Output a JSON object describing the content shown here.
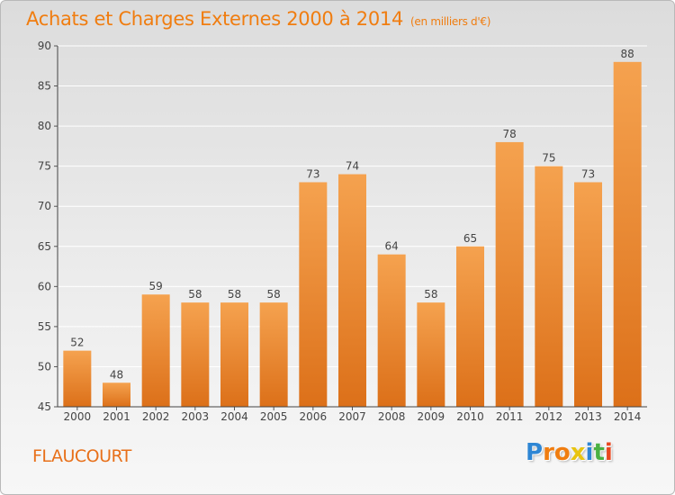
{
  "title": "Achats et Charges Externes 2000 à 2014",
  "unit_label": "(en milliers d'€)",
  "place": "FLAUCOURT",
  "logo": {
    "text": "Proxiti",
    "letters": [
      "P",
      "r",
      "o",
      "x",
      "i",
      "t",
      "i"
    ],
    "letter_colors": [
      "#2e86d4",
      "#f07d10",
      "#f07d10",
      "#e8c410",
      "#2e86d4",
      "#4ab043",
      "#e84820"
    ]
  },
  "colors": {
    "accent": "#f07d10",
    "bar_top": "#f5a24f",
    "bar_bottom": "#dc7019",
    "text": "#444444",
    "grid": "#ffffff"
  },
  "chart_data": {
    "type": "bar",
    "title": "Achats et Charges Externes 2000 à 2014",
    "xlabel": "",
    "ylabel": "",
    "categories": [
      "2000",
      "2001",
      "2002",
      "2003",
      "2004",
      "2005",
      "2006",
      "2007",
      "2008",
      "2009",
      "2010",
      "2011",
      "2012",
      "2013",
      "2014"
    ],
    "values": [
      52,
      48,
      59,
      58,
      58,
      58,
      73,
      74,
      64,
      58,
      65,
      78,
      75,
      73,
      88
    ],
    "ylim": [
      45,
      90
    ],
    "yticks": [
      45,
      50,
      55,
      60,
      65,
      70,
      75,
      80,
      85,
      90
    ],
    "grid": true,
    "legend": "none"
  }
}
